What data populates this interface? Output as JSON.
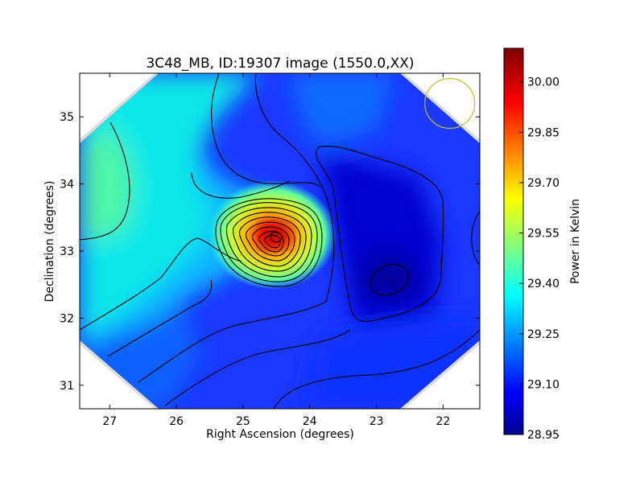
{
  "chart_data": {
    "type": "heatmap",
    "title": "3C48_MB, ID:19307 image (1550.0,XX)",
    "xlabel": "Right Ascension (degrees)",
    "ylabel": "Declination (degrees)",
    "xlim": [
      27.45,
      21.45
    ],
    "ylim": [
      30.65,
      35.65
    ],
    "x_ticks": [
      27,
      26,
      25,
      24,
      23,
      22
    ],
    "y_ticks": [
      31,
      32,
      33,
      34,
      35
    ],
    "colorbar": {
      "label": "Power in Kelvin",
      "range": [
        28.95,
        30.1
      ],
      "ticks": [
        "28.95",
        "29.10",
        "29.25",
        "29.40",
        "29.55",
        "29.70",
        "29.85",
        "30.00"
      ],
      "colormap": "jet"
    },
    "features": [
      {
        "kind": "peak",
        "ra": 24.5,
        "dec": 33.22,
        "value": 30.05
      },
      {
        "kind": "minimum",
        "ra": 22.8,
        "dec": 32.6,
        "value": 28.97
      }
    ],
    "beam_circle": {
      "ra": 21.9,
      "dec": 35.2,
      "color": "#bfbf2a"
    }
  }
}
